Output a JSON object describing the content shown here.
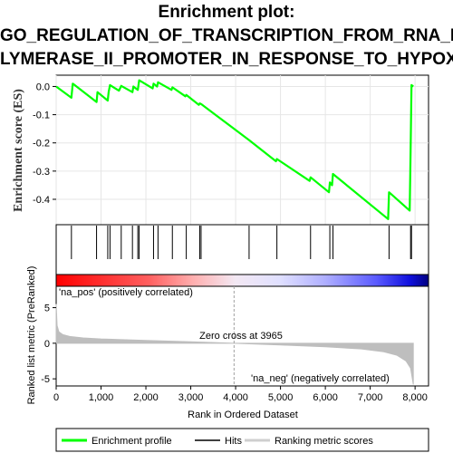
{
  "title_lines": [
    "Enrichment plot:",
    "GO_REGULATION_OF_TRANSCRIPTION_FROM_RNA_PO",
    "LYMERASE_II_PROMOTER_IN_RESPONSE_TO_HYPOXIA"
  ],
  "colors": {
    "enrichment_line": "#00ff00",
    "hits": "#000000",
    "ranking_fill": "#bebebe",
    "pos_label": "#ff0000",
    "neg_label": "#0000ff",
    "zero_cross_line": "#a0a0a0"
  },
  "chart_data": [
    {
      "type": "line",
      "name": "enrichment-profile",
      "ylabel": "Enrichment score (ES)",
      "ylim": [
        -0.49,
        0.04
      ],
      "yticks": [
        "0.0",
        "-0.1",
        "-0.2",
        "-0.3",
        "-0.4"
      ],
      "ytick_values": [
        0.0,
        -0.1,
        -0.2,
        -0.3,
        -0.4
      ],
      "grid": true,
      "points": [
        [
          0,
          0.0
        ],
        [
          340,
          -0.04
        ],
        [
          370,
          0.01
        ],
        [
          900,
          -0.055
        ],
        [
          920,
          -0.02
        ],
        [
          1150,
          -0.05
        ],
        [
          1170,
          -0.02
        ],
        [
          1200,
          0.005
        ],
        [
          1400,
          -0.015
        ],
        [
          1450,
          0.002
        ],
        [
          1700,
          -0.02
        ],
        [
          1720,
          0.0
        ],
        [
          1820,
          -0.012
        ],
        [
          1850,
          0.022
        ],
        [
          2150,
          -0.007
        ],
        [
          2170,
          0.01
        ],
        [
          2250,
          0.0
        ],
        [
          2270,
          0.015
        ],
        [
          2570,
          -0.012
        ],
        [
          2590,
          -0.003
        ],
        [
          2880,
          -0.035
        ],
        [
          2900,
          -0.03
        ],
        [
          3180,
          -0.065
        ],
        [
          3200,
          -0.06
        ],
        [
          3230,
          -0.062
        ],
        [
          4300,
          -0.19
        ],
        [
          4900,
          -0.265
        ],
        [
          4920,
          -0.257
        ],
        [
          5650,
          -0.335
        ],
        [
          5670,
          -0.322
        ],
        [
          6080,
          -0.375
        ],
        [
          6100,
          -0.34
        ],
        [
          6150,
          -0.35
        ],
        [
          6170,
          -0.31
        ],
        [
          7400,
          -0.47
        ],
        [
          7420,
          -0.375
        ],
        [
          7880,
          -0.44
        ],
        [
          7900,
          -0.23
        ],
        [
          7920,
          0.005
        ],
        [
          7960,
          0.0
        ]
      ]
    },
    {
      "type": "scatter",
      "name": "hits",
      "x": [
        340,
        900,
        1150,
        1200,
        1450,
        1700,
        1820,
        1850,
        2170,
        2270,
        2590,
        2900,
        3200,
        3230,
        4300,
        4920,
        5670,
        6100,
        6170,
        7420,
        7900,
        7920
      ]
    },
    {
      "type": "area",
      "name": "ranking-metric-scores",
      "xlabel": "Rank in Ordered Dataset",
      "ylabel": "Ranked list metric (PreRanked)",
      "xlim": [
        0,
        8300
      ],
      "ylim": [
        -6,
        8
      ],
      "xticks": [
        "0",
        "1,000",
        "2,000",
        "3,000",
        "4,000",
        "5,000",
        "6,000",
        "7,000",
        "8,000"
      ],
      "xtick_values": [
        0,
        1000,
        2000,
        3000,
        4000,
        5000,
        6000,
        7000,
        8000
      ],
      "yticks": [
        "5",
        "0",
        "-5"
      ],
      "ytick_values": [
        5,
        0,
        -5
      ],
      "x": [
        0,
        20,
        60,
        150,
        300,
        600,
        1000,
        2000,
        3000,
        3965,
        5000,
        6000,
        6800,
        7300,
        7600,
        7800,
        7900,
        7960
      ],
      "values": [
        5.5,
        2.5,
        1.6,
        1.2,
        0.95,
        0.75,
        0.6,
        0.4,
        0.2,
        0.0,
        -0.25,
        -0.5,
        -0.8,
        -1.2,
        -1.7,
        -2.5,
        -3.5,
        -5.8
      ],
      "zero_cross_label": "Zero cross at 3965",
      "zero_cross": 3965,
      "pos_label": "'na_pos' (positively correlated)",
      "neg_label": "'na_neg' (negatively correlated)"
    }
  ],
  "legend": {
    "placement": "bottom",
    "items": [
      "Enrichment profile",
      "Hits",
      "Ranking metric scores"
    ]
  }
}
